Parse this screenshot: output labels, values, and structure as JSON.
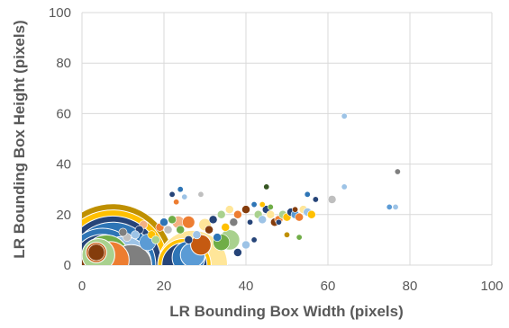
{
  "chart_data": {
    "type": "scatter",
    "title": "",
    "xlabel": "LR Bounding Box Width (pixels)",
    "ylabel": "LR Bounding Box Height (pixels)",
    "xlim": [
      0,
      100
    ],
    "ylim": [
      0,
      100
    ],
    "x_ticks": [
      "0",
      "20",
      "40",
      "60",
      "80",
      "100"
    ],
    "y_ticks": [
      "0",
      "20",
      "40",
      "60",
      "80",
      "100"
    ],
    "grid": true,
    "legend": "none",
    "colors": {
      "gridline": "#d9d9d9",
      "axis_text": "#595959",
      "label_text": "#595959",
      "palette": [
        "#264478",
        "#2e75b6",
        "#5b9bd5",
        "#9dc3e6",
        "#ed7d31",
        "#f4b183",
        "#ffc000",
        "#ffe699",
        "#70ad47",
        "#a9d18e",
        "#7f7f7f",
        "#bfbfbf",
        "#843c0c",
        "#c55a11"
      ]
    },
    "points": [
      {
        "x": 7.5,
        "y": 0.0,
        "size": 30,
        "color": "#bf9000"
      },
      {
        "x": 7.5,
        "y": 0.0,
        "size": 27,
        "color": "#ffc000"
      },
      {
        "x": 7.5,
        "y": 0.0,
        "size": 24,
        "color": "#264478"
      },
      {
        "x": 7.5,
        "y": 0.0,
        "size": 21,
        "color": "#2e75b6"
      },
      {
        "x": 5.0,
        "y": 0.0,
        "size": 18,
        "color": "#2e75b6"
      },
      {
        "x": 5.0,
        "y": 0.0,
        "size": 15,
        "color": "#264478"
      },
      {
        "x": 10.0,
        "y": 0.0,
        "size": 14,
        "color": "#9dc3e6"
      },
      {
        "x": 6.0,
        "y": 0.0,
        "size": 13,
        "color": "#843c0c"
      },
      {
        "x": 6.0,
        "y": 3.0,
        "size": 11,
        "color": "#70ad47"
      },
      {
        "x": 7.0,
        "y": 2.0,
        "size": 9,
        "color": "#ed7d31"
      },
      {
        "x": 12.0,
        "y": 0.0,
        "size": 10,
        "color": "#7f7f7f"
      },
      {
        "x": 4.0,
        "y": 4.0,
        "size": 8,
        "color": "#a9d18e"
      },
      {
        "x": 3.5,
        "y": 5.0,
        "size": 5,
        "color": "#c55a11"
      },
      {
        "x": 3.5,
        "y": 5.0,
        "size": 4,
        "color": "#843c0c"
      },
      {
        "x": 27.0,
        "y": 0.0,
        "size": 17,
        "color": "#ffe699"
      },
      {
        "x": 25.0,
        "y": 0.0,
        "size": 13,
        "color": "#ffc000"
      },
      {
        "x": 25.0,
        "y": 0.0,
        "size": 11,
        "color": "#264478"
      },
      {
        "x": 26.0,
        "y": 3.0,
        "size": 8,
        "color": "#2e75b6"
      },
      {
        "x": 27.0,
        "y": 4.0,
        "size": 6,
        "color": "#5b9bd5"
      },
      {
        "x": 29.0,
        "y": 8.0,
        "size": 5,
        "color": "#c55a11"
      },
      {
        "x": 34.0,
        "y": 9.0,
        "size": 4,
        "color": "#70ad47"
      },
      {
        "x": 36.0,
        "y": 10.0,
        "size": 5,
        "color": "#a9d18e"
      },
      {
        "x": 16.0,
        "y": 9.0,
        "size": 4,
        "color": "#5b9bd5"
      },
      {
        "x": 15.0,
        "y": 16.0,
        "size": 2,
        "color": "#f4b183"
      },
      {
        "x": 14.0,
        "y": 14.0,
        "size": 2,
        "color": "#264478"
      },
      {
        "x": 13.0,
        "y": 12.0,
        "size": 2,
        "color": "#9dc3e6"
      },
      {
        "x": 17.0,
        "y": 12.0,
        "size": 2,
        "color": "#ffc000"
      },
      {
        "x": 19.0,
        "y": 15.0,
        "size": 2,
        "color": "#ed7d31"
      },
      {
        "x": 20.0,
        "y": 17.0,
        "size": 2,
        "color": "#2e75b6"
      },
      {
        "x": 21.0,
        "y": 14.0,
        "size": 2,
        "color": "#bfbfbf"
      },
      {
        "x": 22.0,
        "y": 18.0,
        "size": 2,
        "color": "#70ad47"
      },
      {
        "x": 11.0,
        "y": 11.0,
        "size": 2,
        "color": "#bfbfbf"
      },
      {
        "x": 10.0,
        "y": 13.0,
        "size": 2,
        "color": "#7f7f7f"
      },
      {
        "x": 18.0,
        "y": 10.0,
        "size": 2,
        "color": "#a9d18e"
      },
      {
        "x": 23.5,
        "y": 17.0,
        "size": 3,
        "color": "#f4b183"
      },
      {
        "x": 26.0,
        "y": 17.0,
        "size": 3,
        "color": "#ed7d31"
      },
      {
        "x": 30.0,
        "y": 16.0,
        "size": 3,
        "color": "#ffe699"
      },
      {
        "x": 32.0,
        "y": 18.0,
        "size": 2,
        "color": "#264478"
      },
      {
        "x": 24.0,
        "y": 14.0,
        "size": 2,
        "color": "#70ad47"
      },
      {
        "x": 26.0,
        "y": 10.0,
        "size": 2,
        "color": "#264478"
      },
      {
        "x": 28.0,
        "y": 12.0,
        "size": 2,
        "color": "#9dc3e6"
      },
      {
        "x": 31.0,
        "y": 14.0,
        "size": 2,
        "color": "#843c0c"
      },
      {
        "x": 33.0,
        "y": 11.0,
        "size": 2,
        "color": "#2e75b6"
      },
      {
        "x": 35.0,
        "y": 15.0,
        "size": 2,
        "color": "#ffc000"
      },
      {
        "x": 37.0,
        "y": 17.0,
        "size": 2,
        "color": "#7f7f7f"
      },
      {
        "x": 38.0,
        "y": 20.0,
        "size": 2,
        "color": "#ed7d31"
      },
      {
        "x": 34.0,
        "y": 20.0,
        "size": 2,
        "color": "#a9d18e"
      },
      {
        "x": 36.0,
        "y": 22.0,
        "size": 2,
        "color": "#ffe699"
      },
      {
        "x": 38.0,
        "y": 5.0,
        "size": 2,
        "color": "#264478"
      },
      {
        "x": 40.0,
        "y": 8.0,
        "size": 2,
        "color": "#9dc3e6"
      },
      {
        "x": 22.0,
        "y": 28.0,
        "size": 1,
        "color": "#264478"
      },
      {
        "x": 24.0,
        "y": 30.0,
        "size": 1,
        "color": "#2e75b6"
      },
      {
        "x": 25.0,
        "y": 27.0,
        "size": 1,
        "color": "#9dc3e6"
      },
      {
        "x": 23.0,
        "y": 25.0,
        "size": 1,
        "color": "#ed7d31"
      },
      {
        "x": 29.0,
        "y": 28.0,
        "size": 1,
        "color": "#bfbfbf"
      },
      {
        "x": 40.0,
        "y": 22.0,
        "size": 2,
        "color": "#843c0c"
      },
      {
        "x": 42.0,
        "y": 24.0,
        "size": 1,
        "color": "#2e75b6"
      },
      {
        "x": 43.0,
        "y": 20.0,
        "size": 2,
        "color": "#a9d18e"
      },
      {
        "x": 44.0,
        "y": 18.0,
        "size": 2,
        "color": "#9dc3e6"
      },
      {
        "x": 45.0,
        "y": 22.0,
        "size": 2,
        "color": "#264478"
      },
      {
        "x": 46.0,
        "y": 20.0,
        "size": 2,
        "color": "#ffe699"
      },
      {
        "x": 47.0,
        "y": 17.0,
        "size": 2,
        "color": "#843c0c"
      },
      {
        "x": 48.0,
        "y": 18.0,
        "size": 2,
        "color": "#ed7d31"
      },
      {
        "x": 49.0,
        "y": 20.0,
        "size": 2,
        "color": "#a9d18e"
      },
      {
        "x": 50.0,
        "y": 19.0,
        "size": 2,
        "color": "#ffc000"
      },
      {
        "x": 51.0,
        "y": 21.0,
        "size": 2,
        "color": "#264478"
      },
      {
        "x": 52.0,
        "y": 20.0,
        "size": 2,
        "color": "#5b9bd5"
      },
      {
        "x": 53.0,
        "y": 19.0,
        "size": 2,
        "color": "#ed7d31"
      },
      {
        "x": 54.0,
        "y": 22.0,
        "size": 2,
        "color": "#ffe699"
      },
      {
        "x": 55.0,
        "y": 21.0,
        "size": 2,
        "color": "#9dc3e6"
      },
      {
        "x": 56.0,
        "y": 20.0,
        "size": 2,
        "color": "#ffc000"
      },
      {
        "x": 45.0,
        "y": 31.0,
        "size": 1,
        "color": "#375623"
      },
      {
        "x": 44.0,
        "y": 24.0,
        "size": 1,
        "color": "#ffc000"
      },
      {
        "x": 46.0,
        "y": 23.0,
        "size": 1,
        "color": "#70ad47"
      },
      {
        "x": 41.0,
        "y": 17.0,
        "size": 1,
        "color": "#264478"
      },
      {
        "x": 42.0,
        "y": 10.0,
        "size": 1,
        "color": "#264478"
      },
      {
        "x": 48.0,
        "y": 17.0,
        "size": 1,
        "color": "#264478"
      },
      {
        "x": 50.0,
        "y": 12.0,
        "size": 1,
        "color": "#bf9000"
      },
      {
        "x": 53.0,
        "y": 11.0,
        "size": 1,
        "color": "#70ad47"
      },
      {
        "x": 55.0,
        "y": 28.0,
        "size": 1,
        "color": "#2e75b6"
      },
      {
        "x": 57.0,
        "y": 26.0,
        "size": 1,
        "color": "#264478"
      },
      {
        "x": 52.0,
        "y": 22.0,
        "size": 1,
        "color": "#843c0c"
      },
      {
        "x": 61.0,
        "y": 26.0,
        "size": 2,
        "color": "#bfbfbf"
      },
      {
        "x": 64.0,
        "y": 59.0,
        "size": 1,
        "color": "#9dc3e6"
      },
      {
        "x": 64.0,
        "y": 31.0,
        "size": 1,
        "color": "#9dc3e6"
      },
      {
        "x": 77.0,
        "y": 37.0,
        "size": 1,
        "color": "#7f7f7f"
      },
      {
        "x": 75.0,
        "y": 23.0,
        "size": 1,
        "color": "#5b9bd5"
      },
      {
        "x": 76.5,
        "y": 23.0,
        "size": 1,
        "color": "#9dc3e6"
      }
    ]
  }
}
